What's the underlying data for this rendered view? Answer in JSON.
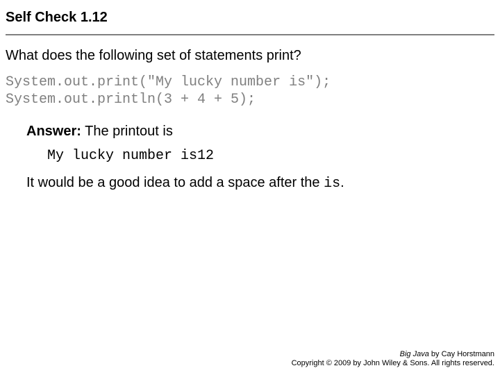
{
  "title": "Self Check 1.12",
  "question": "What does the following set of statements print?",
  "code_line1": "System.out.print(\"My lucky number is\");",
  "code_line2": "System.out.println(3 + 4 + 5);",
  "answer_label": "Answer:",
  "answer_text": " The printout is",
  "output": "My lucky number is12",
  "followup_pre": "It would be a good idea to add a space after the ",
  "followup_mono": "is",
  "followup_post": ".",
  "footer": {
    "book": "Big Java",
    "byline": " by Cay Horstmann",
    "copyright": "Copyright © 2009 by John Wiley & Sons. All rights reserved."
  },
  "colors": {
    "text": "#000000",
    "code_gray": "#808080",
    "rule_gray": "#808080",
    "background": "#ffffff"
  },
  "fonts": {
    "body": "Arial",
    "mono": "Courier New",
    "title_size_pt": 20,
    "body_size_pt": 20,
    "footer_size_pt": 11
  }
}
